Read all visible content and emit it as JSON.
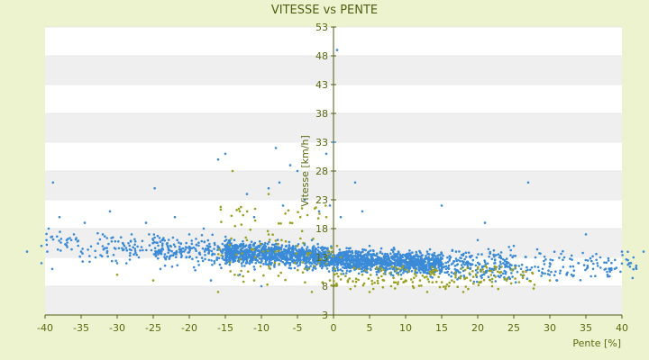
{
  "chart_data": {
    "type": "scatter",
    "title": "VITESSE vs PENTE",
    "xlabel": "Pente [%]",
    "ylabel": "Vitesse [km/h]",
    "xlim": [
      -40,
      40
    ],
    "ylim": [
      3,
      53
    ],
    "x_ticks": [
      "-40",
      "-35",
      "-30",
      "-25",
      "-20",
      "-15",
      "-10",
      "-5",
      "0",
      "5",
      "10",
      "15",
      "20",
      "25",
      "30",
      "35",
      "40"
    ],
    "y_ticks": [
      "3",
      "8",
      "13",
      "18",
      "23",
      "28",
      "33",
      "38",
      "43",
      "48",
      "53"
    ],
    "grid": "horizontal-bands",
    "colors": {
      "background": "#eef3cf",
      "plot": "#ffffff",
      "band": "#efefef",
      "axis": "#4e5e10",
      "primary_series": "#3a8ad8",
      "secondary_series": "#9aa020"
    },
    "series": [
      {
        "color": "#3a8ad8",
        "points": [
          [
            -42.5,
            14
          ],
          [
            -40.5,
            15
          ],
          [
            -40.5,
            12
          ],
          [
            -39.8,
            16
          ],
          [
            -39.5,
            18
          ],
          [
            -39,
            11
          ],
          [
            -38.9,
            26
          ],
          [
            -38,
            20
          ],
          [
            -37,
            16
          ],
          [
            -36,
            17
          ],
          [
            -35,
            14
          ],
          [
            -34.5,
            19
          ],
          [
            -33,
            13
          ],
          [
            -32,
            17
          ],
          [
            -31,
            21
          ],
          [
            -30,
            12
          ],
          [
            -29,
            15
          ],
          [
            -28,
            17
          ],
          [
            -27,
            13
          ],
          [
            -26,
            19
          ],
          [
            -25,
            16
          ],
          [
            -24.8,
            25
          ],
          [
            -24,
            11
          ],
          [
            -23,
            15
          ],
          [
            -22,
            20
          ],
          [
            -21,
            14
          ],
          [
            -20,
            17
          ],
          [
            -19,
            13
          ],
          [
            -18,
            18
          ],
          [
            -17,
            9
          ],
          [
            -16.5,
            12
          ],
          [
            -16,
            30
          ],
          [
            -15,
            31
          ],
          [
            -14,
            15
          ],
          [
            -13,
            10
          ],
          [
            -12,
            24
          ],
          [
            -11,
            20
          ],
          [
            -10,
            8
          ],
          [
            -9,
            25
          ],
          [
            -8,
            32
          ],
          [
            -7.5,
            26
          ],
          [
            -7,
            22
          ],
          [
            -6,
            29
          ],
          [
            -5,
            28
          ],
          [
            -4,
            23
          ],
          [
            -3,
            16
          ],
          [
            -2,
            21
          ],
          [
            -1,
            31
          ],
          [
            -0.5,
            22
          ],
          [
            0,
            33
          ],
          [
            0.5,
            49
          ],
          [
            1,
            20
          ],
          [
            2,
            12
          ],
          [
            3,
            26
          ],
          [
            4,
            21
          ],
          [
            5,
            15
          ],
          [
            6,
            11
          ],
          [
            7,
            13
          ],
          [
            8,
            10
          ],
          [
            9,
            14
          ],
          [
            10,
            12
          ],
          [
            11,
            13
          ],
          [
            12,
            11
          ],
          [
            13,
            14
          ],
          [
            14,
            12
          ],
          [
            15,
            22
          ],
          [
            16,
            10
          ],
          [
            17,
            14
          ],
          [
            18,
            12
          ],
          [
            19,
            13
          ],
          [
            20,
            16
          ],
          [
            21,
            19
          ],
          [
            22,
            11
          ],
          [
            23,
            13
          ],
          [
            24,
            12
          ],
          [
            25,
            15
          ],
          [
            26,
            11
          ],
          [
            27,
            26
          ],
          [
            28,
            13
          ],
          [
            29,
            11
          ],
          [
            30,
            12
          ],
          [
            31,
            9
          ],
          [
            32,
            13
          ],
          [
            33,
            10
          ],
          [
            34,
            12
          ],
          [
            35,
            17
          ],
          [
            36,
            11
          ],
          [
            37,
            13
          ],
          [
            38,
            10
          ],
          [
            39,
            11
          ],
          [
            40,
            14
          ],
          [
            41,
            12
          ],
          [
            42,
            11
          ],
          [
            43,
            14
          ]
        ]
      },
      {
        "color": "#9aa020",
        "points": [
          [
            -30,
            10
          ],
          [
            -25,
            9
          ],
          [
            -16,
            7
          ],
          [
            -14,
            28
          ],
          [
            -13,
            21
          ],
          [
            -12,
            16
          ],
          [
            -11,
            9
          ],
          [
            -9,
            24
          ],
          [
            -8,
            14
          ],
          [
            -6,
            19
          ],
          [
            -5,
            15
          ],
          [
            -4,
            11
          ],
          [
            -3,
            7
          ],
          [
            -2,
            12
          ],
          [
            -1,
            20
          ],
          [
            -0.5,
            9
          ],
          [
            0.5,
            15
          ],
          [
            1,
            13
          ],
          [
            2,
            9
          ],
          [
            3,
            8
          ],
          [
            4,
            10
          ],
          [
            5,
            7
          ],
          [
            6,
            11
          ],
          [
            7,
            9
          ],
          [
            8,
            8
          ],
          [
            9,
            10
          ],
          [
            10,
            9
          ],
          [
            11,
            8
          ],
          [
            12,
            9
          ],
          [
            13,
            7
          ],
          [
            14,
            10
          ],
          [
            16,
            8
          ],
          [
            18,
            7
          ],
          [
            19,
            9
          ],
          [
            20,
            11
          ],
          [
            22,
            8
          ],
          [
            24,
            9
          ],
          [
            26,
            10
          ],
          [
            30,
            9
          ]
        ]
      }
    ]
  }
}
